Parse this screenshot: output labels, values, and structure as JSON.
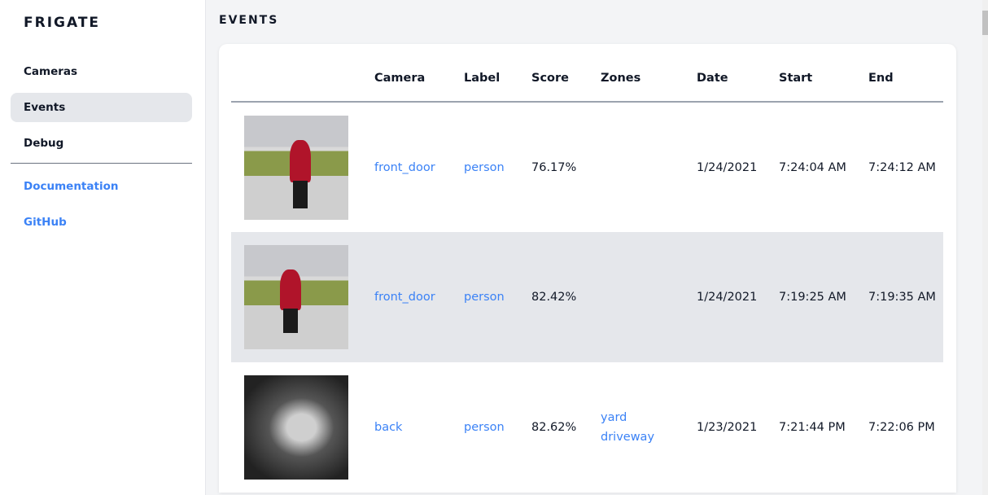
{
  "sidebar": {
    "brand": "FRIGATE",
    "items": [
      {
        "label": "Cameras"
      },
      {
        "label": "Events"
      },
      {
        "label": "Debug"
      }
    ],
    "links": [
      {
        "label": "Documentation"
      },
      {
        "label": "GitHub"
      }
    ]
  },
  "page": {
    "title": "EVENTS"
  },
  "table": {
    "headers": [
      "",
      "Camera",
      "Label",
      "Score",
      "Zones",
      "Date",
      "Start",
      "End"
    ],
    "rows": [
      {
        "camera": "front_door",
        "label": "person",
        "score": "76.17%",
        "zones": [
          "",
          ""
        ],
        "date": "1/24/2021",
        "start": "7:24:04 AM",
        "end": "7:24:12 AM"
      },
      {
        "camera": "front_door",
        "label": "person",
        "score": "82.42%",
        "zones": [
          "",
          ""
        ],
        "date": "1/24/2021",
        "start": "7:19:25 AM",
        "end": "7:19:35 AM"
      },
      {
        "camera": "back",
        "label": "person",
        "score": "82.62%",
        "zones": [
          "yard",
          "driveway"
        ],
        "date": "1/23/2021",
        "start": "7:21:44 PM",
        "end": "7:22:06 PM"
      }
    ]
  }
}
